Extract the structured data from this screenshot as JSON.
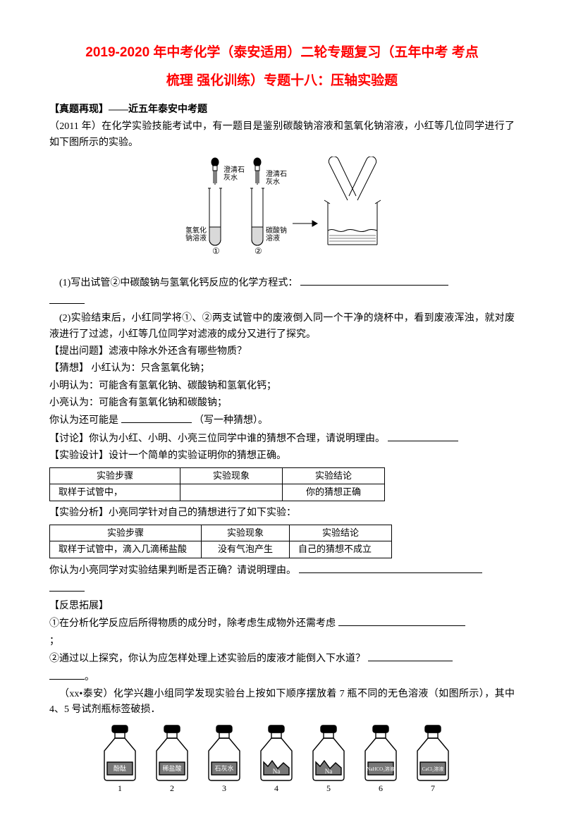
{
  "title": {
    "line1": "2019-2020 年中考化学（泰安适用）二轮专题复习（五年中考 考点",
    "line2": "梳理 强化训练）专题十八：压轴实验题"
  },
  "zhenti_head": "【真题再现】——近五年泰安中考题",
  "p2011_intro": "（2011 年）在化学实验技能考试中，有一题目是鉴别碳酸钠溶液和氢氧化钠溶液，小红等几位同学进行了如下图所示的实验。",
  "fig1": {
    "label_l1": "澄清石",
    "label_l2": "灰水",
    "label_r1": "澄清石",
    "label_r2": "灰水",
    "tube1_l1": "氢氧化",
    "tube1_l2": "钠溶液",
    "tube2_l1": "碳酸钠",
    "tube2_l2": "溶液",
    "num1": "①",
    "num2": "②"
  },
  "q1": "(1)写出试管②中碳酸钠与氢氧化钙反应的化学方程式：",
  "q2": "(2)实验结束后，小红同学将①、②两支试管中的废液倒入同一个干净的烧杯中，看到废液浑浊，就对废液进行了过滤，小红等几位同学对滤液的成分又进行了探究。",
  "ask": "【提出问题】滤液中除水外还含有哪些物质？",
  "guess_head": "【猜想】 小红认为：只含氢氧化钠；",
  "guess_ming": "小明认为：可能含有氢氧化钠、碳酸钠和氢氧化钙；",
  "guess_liang": "小亮认为：可能含有氢氧化钠和碳酸钠；",
  "guess_you": "你认为还可能是",
  "guess_you_tail": "（写一种猜想）。",
  "discuss": "【讨论】你认为小红、小明、小亮三位同学中谁的猜想不合理，请说明理由。",
  "design": "【实验设计】设计一个简单的实验证明你的猜想正确。",
  "table1": {
    "h1": "实验步骤",
    "h2": "实验现象",
    "h3": "实验结论",
    "r1c1": "取样于试管中，",
    "r1c3": "你的猜想正确"
  },
  "analysis_head": "【实验分析】小亮同学针对自己的猜想进行了如下实验：",
  "table2": {
    "h1": "实验步骤",
    "h2": "实验现象",
    "h3": "实验结论",
    "r1c1": "取样于试管中，滴入几滴稀盐酸",
    "r1c2": "没有气泡产生",
    "r1c3": "自己的猜想不成立"
  },
  "judge": "你认为小亮同学对实验结果判断是否正确？请说明理由。",
  "reflect_head": "【反思拓展】",
  "reflect1": "①在分析化学反应后所得物质的成分时，除考虑生成物外还需考虑",
  "reflect1_tail": "；",
  "reflect2": "②通过以上探究，你认为应怎样处理上述实验后的废液才能倒入下水道？",
  "xxtaian": "（xx•泰安）化学兴趣小组同学发现实验台上按如下顺序摆放着 7 瓶不同的无色溶液（如图所示），其中 4、5 号试剂瓶标签破损．",
  "bottles": {
    "labels": [
      "酚酞",
      "稀盐酸",
      "石灰水",
      "Na",
      "Na",
      "NaHCO₃溶液",
      "CaCl₂溶液"
    ],
    "nums": [
      "1",
      "2",
      "3",
      "4",
      "5",
      "6",
      "7"
    ]
  }
}
